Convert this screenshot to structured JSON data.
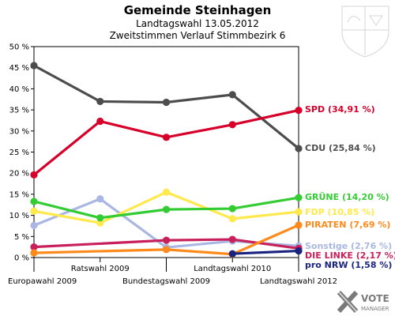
{
  "chart_data": {
    "type": "line",
    "title": "Gemeinde Steinhagen",
    "subtitle_1": "Landtagswahl 13.05.2012",
    "subtitle_2": "Zweitstimmen Verlauf Stimmbezirk 6",
    "categories": [
      "Europawahl 2009",
      "Ratswahl 2009",
      "Bundestagswahl 2009",
      "Landtagswahl 2010",
      "Landtagswahl 2012"
    ],
    "ylim": [
      0,
      50
    ],
    "y_ticks": [
      "0 %",
      "5 %",
      "10 %",
      "15 %",
      "20 %",
      "25 %",
      "30 %",
      "35 %",
      "40 %",
      "45 %",
      "50 %"
    ],
    "grid": false,
    "series": [
      {
        "name": "Sonstige",
        "end_label": "Sonstige (2,76 %)",
        "color": "#aab7e3",
        "values": [
          7.6,
          13.9,
          2.4,
          3.9,
          2.76
        ]
      },
      {
        "name": "FDP",
        "end_label": "FDP (10,85 %)",
        "color": "#ffe94c",
        "values": [
          11.0,
          8.2,
          15.5,
          9.2,
          10.85
        ]
      },
      {
        "name": "GRÜNE",
        "end_label": "GRÜNE (14,20 %)",
        "color": "#33cc33",
        "values": [
          13.3,
          9.4,
          11.4,
          11.6,
          14.2
        ]
      },
      {
        "name": "DIE LINKE",
        "end_label": "DIE LINKE (2,17 %)",
        "color": "#c8205a",
        "values": [
          2.5,
          null,
          4.1,
          4.3,
          2.17
        ]
      },
      {
        "name": "PIRATEN",
        "end_label": "PIRATEN (7,69 %)",
        "color": "#ff8a1c",
        "values": [
          1.1,
          null,
          1.9,
          0.8,
          7.69
        ]
      },
      {
        "name": "pro NRW",
        "end_label": "pro NRW (1,58 %)",
        "color": "#1a237e",
        "values": [
          null,
          null,
          null,
          0.9,
          1.58
        ]
      },
      {
        "name": "CDU",
        "end_label": "CDU (25,84 %)",
        "color": "#4d4d4d",
        "values": [
          45.5,
          37.0,
          36.8,
          38.6,
          25.84
        ]
      },
      {
        "name": "SPD",
        "end_label": "SPD (34,91 %)",
        "color": "#d7002a",
        "values": [
          19.6,
          32.3,
          28.5,
          31.5,
          34.91
        ]
      }
    ]
  },
  "brand": {
    "line1": "VOTE",
    "line2": "MANAGER"
  }
}
